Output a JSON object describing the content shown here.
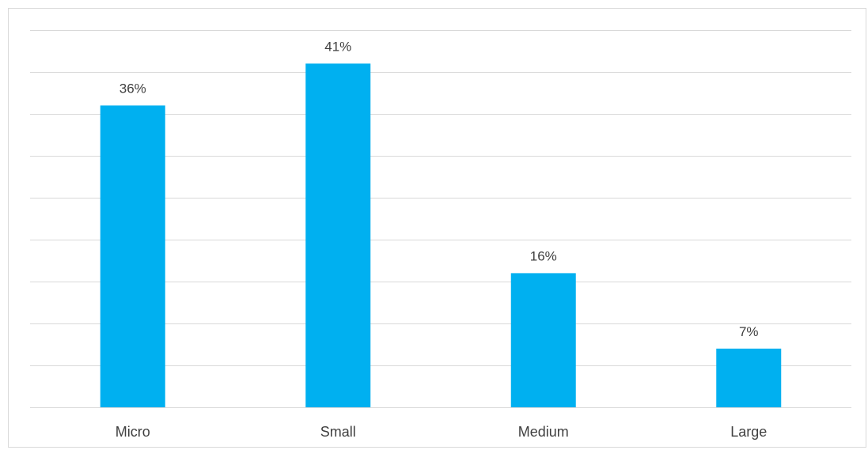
{
  "chart_data": {
    "type": "bar",
    "categories": [
      "Micro",
      "Small",
      "Medium",
      "Large"
    ],
    "values": [
      36,
      41,
      16,
      7
    ],
    "data_labels": [
      "36%",
      "41%",
      "16%",
      "7%"
    ],
    "title": "",
    "xlabel": "",
    "ylabel": "",
    "ylim": [
      0,
      45
    ],
    "grid": true,
    "legend": "none",
    "bar_color": "#00b0f0",
    "grid_color": "#d9d9d9",
    "text_color": "#404040"
  }
}
